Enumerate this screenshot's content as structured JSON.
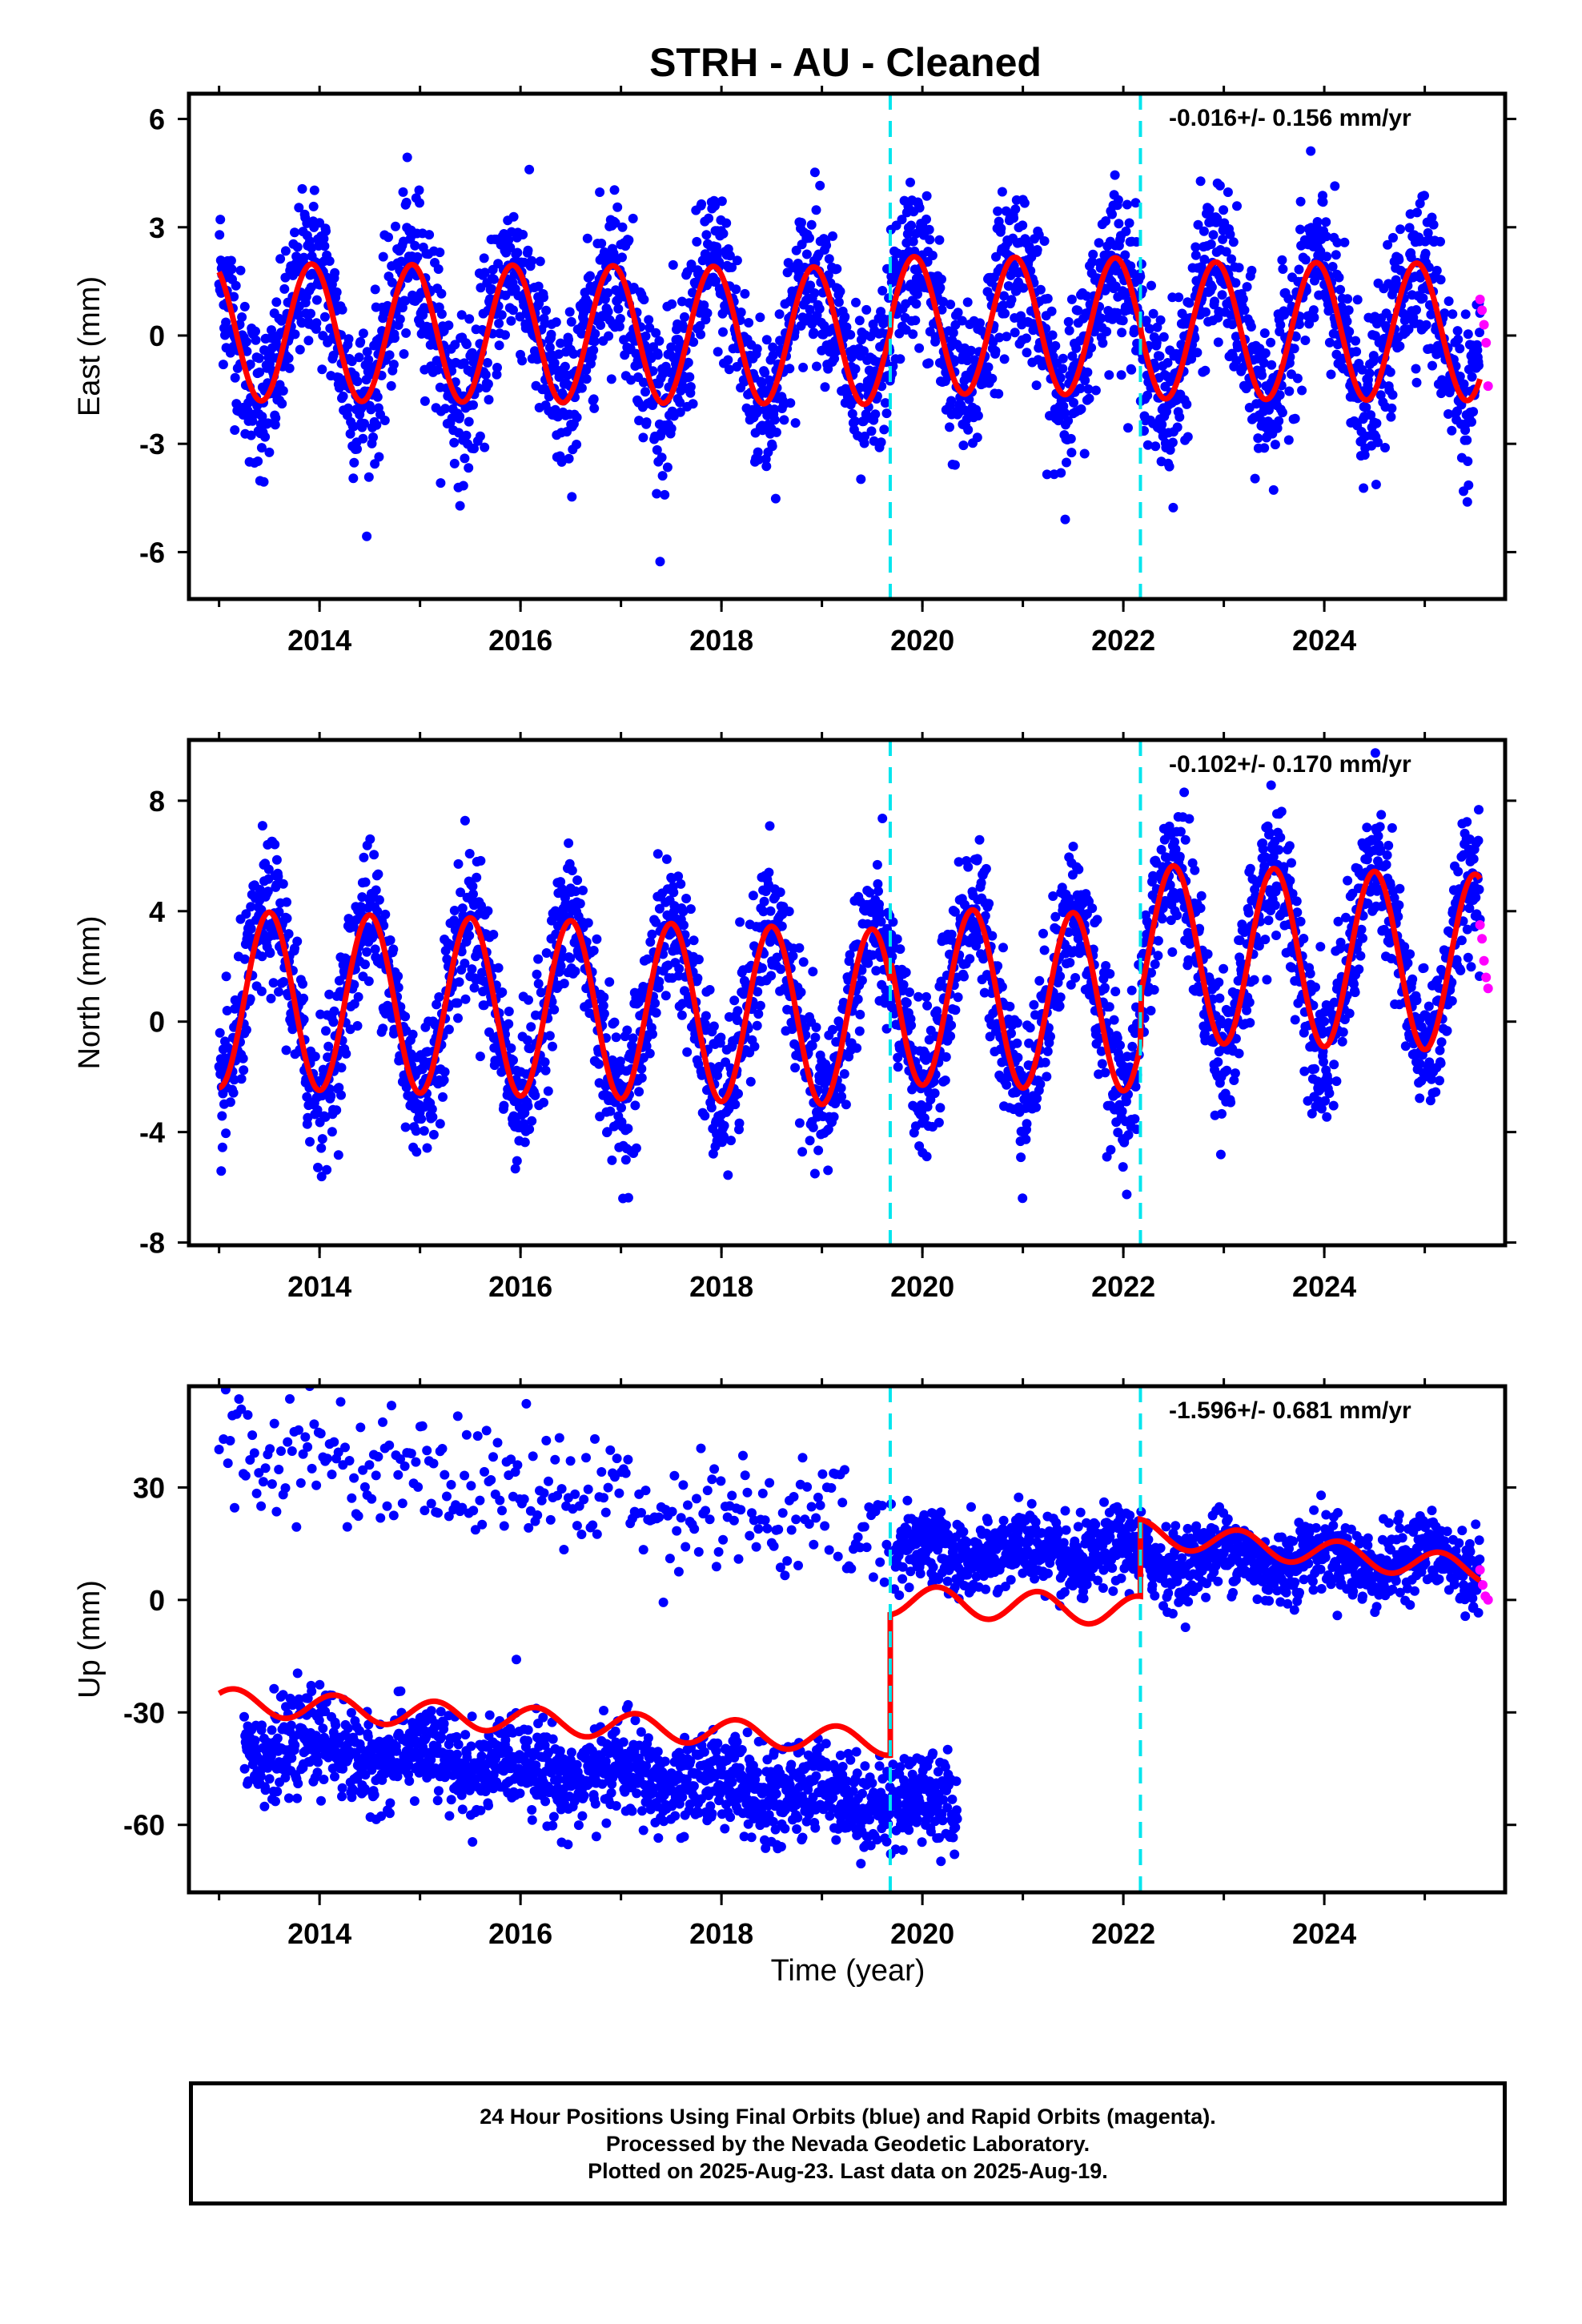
{
  "title": "STRH  - AU - Cleaned",
  "xlabel": "Time (year)",
  "caption": [
    "24 Hour Positions Using Final Orbits (blue) and Rapid Orbits (magenta).",
    "Processed by the Nevada Geodetic Laboratory.",
    "Plotted on 2025-Aug-23. Last data on 2025-Aug-19."
  ],
  "colors": {
    "final_orbits": "#0000ff",
    "rapid_orbits": "#ff00ff",
    "model": "#ff0000",
    "offsets": "#00e5ee"
  },
  "chart_data": [
    {
      "type": "scatter",
      "component": "east",
      "ylabel": "East (mm)",
      "rate_label": "-0.016+/- 0.156 mm/yr",
      "xlim": [
        2012.7,
        2025.8
      ],
      "ylim": [
        -7.3,
        6.7
      ],
      "yticks": [
        -6,
        -3,
        0,
        3,
        6
      ],
      "xticks": [
        2014,
        2016,
        2018,
        2020,
        2022,
        2024
      ],
      "offset_lines": [
        2019.68,
        2022.17
      ],
      "model": {
        "mean": 0,
        "trend_mm_per_yr": -0.016,
        "amplitude": 1.9,
        "peak_phase_yr": 0.92,
        "segment_shifts": [
          0,
          0.3,
          0.2
        ]
      },
      "scatter_sd": 1.1,
      "series": [
        {
          "name": "Final Orbits (blue)",
          "x_range": [
            2013.0,
            2025.55
          ]
        },
        {
          "name": "Rapid Orbits (magenta)",
          "x_range": [
            2025.55,
            2025.63
          ],
          "y_values": [
            1.0,
            0.7,
            0.3,
            -0.2,
            -1.4
          ]
        }
      ]
    },
    {
      "type": "scatter",
      "component": "north",
      "ylabel": "North (mm)",
      "rate_label": "-0.102+/- 0.170 mm/yr",
      "xlim": [
        2012.7,
        2025.8
      ],
      "ylim": [
        -8.1,
        10.2
      ],
      "yticks": [
        -8,
        -4,
        0,
        4,
        8
      ],
      "xticks": [
        2014,
        2016,
        2018,
        2020,
        2022,
        2024
      ],
      "offset_lines": [
        2019.68,
        2022.17
      ],
      "model": {
        "mean": 0.2,
        "trend_mm_per_yr": -0.102,
        "amplitude": 3.2,
        "peak_phase_yr": 0.5,
        "segment_shifts": [
          0,
          0.8,
          2.6
        ]
      },
      "scatter_sd": 1.3,
      "series": [
        {
          "name": "Final Orbits (blue)",
          "x_range": [
            2013.0,
            2025.55
          ]
        },
        {
          "name": "Rapid Orbits (magenta)",
          "x_range": [
            2025.55,
            2025.63
          ],
          "y_values": [
            3.5,
            3.0,
            2.2,
            1.6,
            1.2
          ]
        }
      ]
    },
    {
      "type": "scatter",
      "component": "up",
      "ylabel": "Up (mm)",
      "rate_label": "-1.596+/- 0.681 mm/yr",
      "xlim": [
        2012.7,
        2025.8
      ],
      "ylim": [
        -78,
        57
      ],
      "yticks": [
        -60,
        -30,
        0,
        30
      ],
      "xticks": [
        2014,
        2016,
        2018,
        2020,
        2022,
        2024
      ],
      "offset_lines": [
        2019.68,
        2022.17
      ],
      "model_segments": [
        {
          "x_range": [
            2013.0,
            2019.68
          ],
          "start": -27,
          "end": -38,
          "amplitude": 3.5
        },
        {
          "x_range": [
            2019.68,
            2022.17
          ],
          "start": 0,
          "end": -3,
          "amplitude": 4.0
        },
        {
          "x_range": [
            2022.17,
            2025.55
          ],
          "start": 18,
          "end": 8,
          "amplitude": 3.5
        }
      ],
      "point_groups": [
        {
          "name": "Final Orbits (blue) lower",
          "x_range": [
            2013.25,
            2020.35
          ],
          "start": -38,
          "end": -55,
          "sd": 6,
          "density": "dense"
        },
        {
          "name": "Final Orbits (blue) upper",
          "x_range": [
            2013.0,
            2019.7
          ],
          "start": 42,
          "end": 17,
          "sd": 8,
          "density": "sparse"
        },
        {
          "name": "Final Orbits (blue) post-2019",
          "x_range": [
            2019.72,
            2025.55
          ],
          "start": 13,
          "end": 10,
          "sd": 5,
          "density": "dense"
        },
        {
          "name": "Rapid Orbits (magenta)",
          "x_range": [
            2025.55,
            2025.63
          ],
          "y_values": [
            8,
            4,
            1,
            0
          ]
        }
      ]
    }
  ]
}
